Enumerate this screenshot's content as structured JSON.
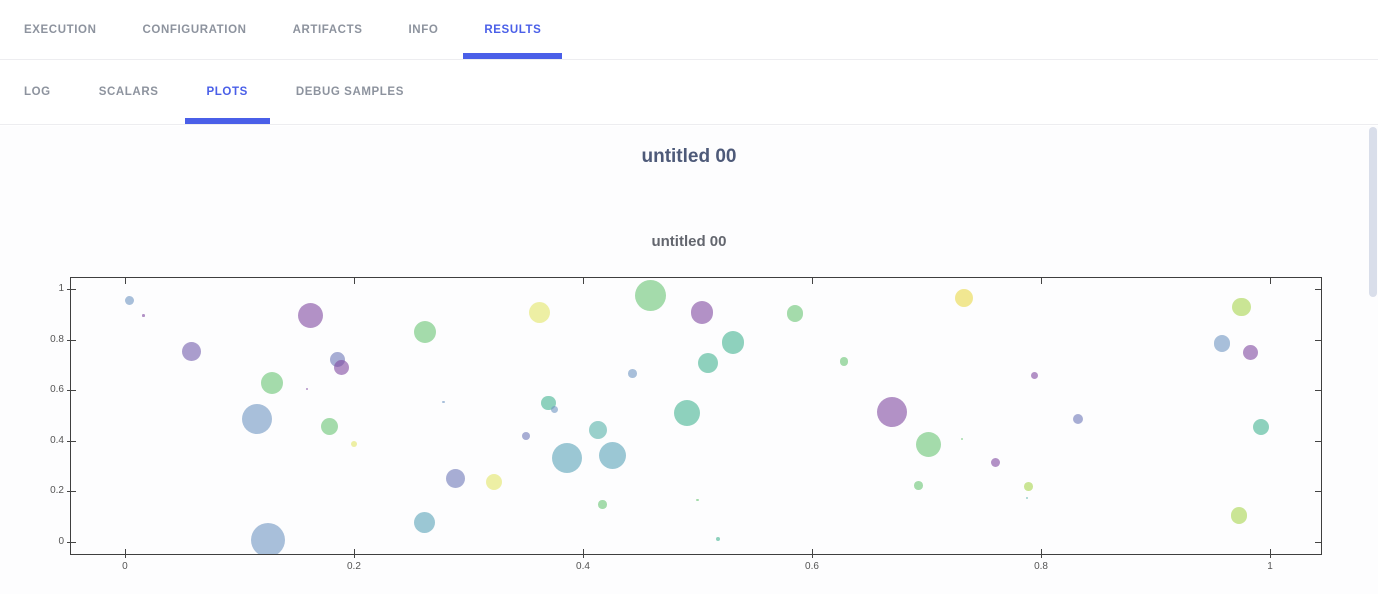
{
  "accent_color": "#4a5fe8",
  "tabs": {
    "main": [
      {
        "label": "EXECUTION",
        "active": false
      },
      {
        "label": "CONFIGURATION",
        "active": false
      },
      {
        "label": "ARTIFACTS",
        "active": false
      },
      {
        "label": "INFO",
        "active": false
      },
      {
        "label": "RESULTS",
        "active": true
      }
    ],
    "sub": [
      {
        "label": "LOG",
        "active": false
      },
      {
        "label": "SCALARS",
        "active": false
      },
      {
        "label": "PLOTS",
        "active": true
      },
      {
        "label": "DEBUG SAMPLES",
        "active": false
      }
    ]
  },
  "page": {
    "plot_group_title": "untitled 00"
  },
  "chart_data": {
    "type": "scatter",
    "title": "untitled 00",
    "xlabel": "",
    "ylabel": "",
    "grid": false,
    "legend": "none",
    "x_range": [
      -0.0471,
      1.0445
    ],
    "y_range": [
      -0.0471,
      1.0431
    ],
    "x_ticks": {
      "values": [
        0,
        0.2,
        0.4,
        0.6,
        0.8,
        1
      ],
      "labels": [
        "0",
        "0.2",
        "0.4",
        "0.6",
        "0.8",
        "1"
      ]
    },
    "y_ticks": {
      "values": [
        0,
        0.2,
        0.4,
        0.6,
        0.8,
        1
      ],
      "labels": [
        "0",
        "0.2",
        "0.4",
        "0.6",
        "0.8",
        "1"
      ]
    },
    "marker_opacity": 0.6,
    "palette": {
      "steel_blue": "#7096c2",
      "teal_blue": "#5aa3b7",
      "teal": "#56b3a8",
      "teal_green": "#44b491",
      "green": "#69c573",
      "yellow_green": "#a8d54f",
      "yellow": "#e3e667",
      "gold": "#e9d948",
      "lavender_blue": "#6e78b7",
      "purple": "#735dac",
      "mauve": "#8049a0"
    },
    "points": [
      {
        "x": 0.004,
        "y": 0.953,
        "r": 4.5,
        "c": "steel_blue"
      },
      {
        "x": 0.016,
        "y": 0.894,
        "r": 1.3,
        "c": "mauve"
      },
      {
        "x": 0.058,
        "y": 0.753,
        "r": 9.5,
        "c": "purple"
      },
      {
        "x": 0.115,
        "y": 0.486,
        "r": 15.0,
        "c": "steel_blue"
      },
      {
        "x": 0.128,
        "y": 0.627,
        "r": 11.0,
        "c": "green"
      },
      {
        "x": 0.125,
        "y": 0.01,
        "r": 17.0,
        "c": "steel_blue"
      },
      {
        "x": 0.159,
        "y": 0.604,
        "r": 1.3,
        "c": "mauve"
      },
      {
        "x": 0.162,
        "y": 0.894,
        "r": 12.5,
        "c": "mauve"
      },
      {
        "x": 0.179,
        "y": 0.455,
        "r": 8.5,
        "c": "green"
      },
      {
        "x": 0.186,
        "y": 0.722,
        "r": 7.5,
        "c": "lavender_blue"
      },
      {
        "x": 0.189,
        "y": 0.69,
        "r": 7.5,
        "c": "mauve"
      },
      {
        "x": 0.2,
        "y": 0.388,
        "r": 3.2,
        "c": "yellow"
      },
      {
        "x": 0.262,
        "y": 0.831,
        "r": 11.0,
        "c": "green"
      },
      {
        "x": 0.262,
        "y": 0.078,
        "r": 10.5,
        "c": "teal_blue"
      },
      {
        "x": 0.278,
        "y": 0.553,
        "r": 1.3,
        "c": "steel_blue"
      },
      {
        "x": 0.289,
        "y": 0.251,
        "r": 9.5,
        "c": "lavender_blue"
      },
      {
        "x": 0.322,
        "y": 0.239,
        "r": 8.0,
        "c": "yellow"
      },
      {
        "x": 0.35,
        "y": 0.42,
        "r": 4.2,
        "c": "lavender_blue"
      },
      {
        "x": 0.362,
        "y": 0.906,
        "r": 10.5,
        "c": "yellow"
      },
      {
        "x": 0.37,
        "y": 0.549,
        "r": 7.3,
        "c": "teal_green"
      },
      {
        "x": 0.375,
        "y": 0.525,
        "r": 3.5,
        "c": "steel_blue"
      },
      {
        "x": 0.386,
        "y": 0.333,
        "r": 15.0,
        "c": "teal_blue"
      },
      {
        "x": 0.413,
        "y": 0.443,
        "r": 9.3,
        "c": "teal"
      },
      {
        "x": 0.417,
        "y": 0.149,
        "r": 4.2,
        "c": "green"
      },
      {
        "x": 0.426,
        "y": 0.341,
        "r": 13.5,
        "c": "teal_blue"
      },
      {
        "x": 0.443,
        "y": 0.667,
        "r": 4.3,
        "c": "steel_blue"
      },
      {
        "x": 0.459,
        "y": 0.975,
        "r": 15.5,
        "c": "green"
      },
      {
        "x": 0.491,
        "y": 0.51,
        "r": 13.0,
        "c": "teal_green"
      },
      {
        "x": 0.5,
        "y": 0.165,
        "r": 1.2,
        "c": "green"
      },
      {
        "x": 0.504,
        "y": 0.906,
        "r": 11.3,
        "c": "mauve"
      },
      {
        "x": 0.509,
        "y": 0.706,
        "r": 10.0,
        "c": "teal_green"
      },
      {
        "x": 0.518,
        "y": 0.012,
        "r": 2.2,
        "c": "teal_green"
      },
      {
        "x": 0.531,
        "y": 0.788,
        "r": 11.3,
        "c": "teal_green"
      },
      {
        "x": 0.585,
        "y": 0.902,
        "r": 8.3,
        "c": "green"
      },
      {
        "x": 0.628,
        "y": 0.714,
        "r": 4.3,
        "c": "green"
      },
      {
        "x": 0.67,
        "y": 0.514,
        "r": 15.0,
        "c": "mauve"
      },
      {
        "x": 0.693,
        "y": 0.224,
        "r": 4.3,
        "c": "green"
      },
      {
        "x": 0.702,
        "y": 0.384,
        "r": 12.5,
        "c": "green"
      },
      {
        "x": 0.731,
        "y": 0.408,
        "r": 1.2,
        "c": "green"
      },
      {
        "x": 0.733,
        "y": 0.965,
        "r": 9.0,
        "c": "gold"
      },
      {
        "x": 0.76,
        "y": 0.314,
        "r": 4.7,
        "c": "mauve"
      },
      {
        "x": 0.789,
        "y": 0.22,
        "r": 4.3,
        "c": "yellow_green"
      },
      {
        "x": 0.788,
        "y": 0.173,
        "r": 1.2,
        "c": "teal"
      },
      {
        "x": 0.794,
        "y": 0.659,
        "r": 3.5,
        "c": "mauve"
      },
      {
        "x": 0.832,
        "y": 0.486,
        "r": 5.0,
        "c": "lavender_blue"
      },
      {
        "x": 0.958,
        "y": 0.784,
        "r": 8.3,
        "c": "steel_blue"
      },
      {
        "x": 0.973,
        "y": 0.106,
        "r": 8.3,
        "c": "yellow_green"
      },
      {
        "x": 0.975,
        "y": 0.929,
        "r": 9.3,
        "c": "yellow_green"
      },
      {
        "x": 0.983,
        "y": 0.749,
        "r": 7.7,
        "c": "mauve"
      },
      {
        "x": 0.992,
        "y": 0.455,
        "r": 8.0,
        "c": "teal_green"
      }
    ]
  }
}
